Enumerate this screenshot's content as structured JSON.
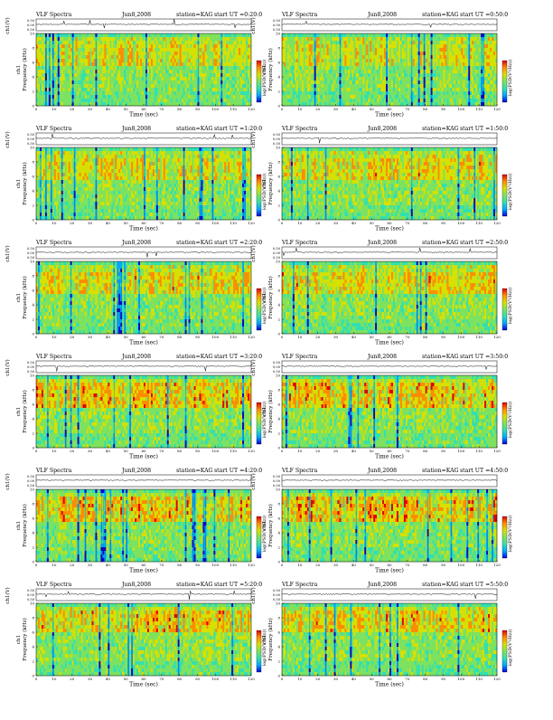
{
  "page": {
    "title": "VLF Spectra — KAG, Jun 8 2008"
  },
  "common": {
    "heading": "VLF Spectra",
    "date": "Jun8,2008",
    "station": "station=KAG",
    "start_prefix": "start UT =",
    "top_ylabel": "ch1(V)",
    "top_yticks": [
      "0.00",
      "0.50"
    ],
    "top_yticks_full": [
      "0.50",
      "0.00",
      "0.50"
    ],
    "ylabel_line1": "ch1",
    "ylabel_line2": "Frequency (kHz)",
    "xlabel": "Time (sec)",
    "colorbar_label": "log(PSD(V²/Hz))",
    "colorscale": [
      "#0000d8",
      "#00a8ff",
      "#33e0b0",
      "#7ee25e",
      "#d8e000",
      "#ff8c00",
      "#e00000"
    ]
  },
  "chart_data": [
    {
      "type": "heatmap",
      "title": "VLF Spectra  Jun8,2008  station=KAG  start UT =0:20:0",
      "start_ut": "0:20:0",
      "xlabel": "Time (sec)",
      "ylabel": "ch1 Frequency (kHz)",
      "x_ticks": [
        0,
        10,
        20,
        30,
        40,
        50,
        60,
        70,
        80,
        90,
        100,
        110,
        120
      ],
      "y_ticks": [
        0,
        2,
        4,
        6,
        8,
        10
      ],
      "xlim": [
        0,
        120
      ],
      "ylim": [
        0,
        10
      ],
      "colorbar": "log(PSD(V²/Hz))",
      "band_kHz": [
        5.5,
        8.5
      ],
      "intensity": 0.45
    },
    {
      "type": "heatmap",
      "title": "VLF Spectra  Jun8,2008  station=KAG  start UT =0:50:0",
      "start_ut": "0:50:0",
      "xlabel": "Time (sec)",
      "ylabel": "ch1 Frequency (kHz)",
      "x_ticks": [
        0,
        10,
        20,
        30,
        40,
        50,
        60,
        70,
        80,
        90,
        100,
        110,
        120
      ],
      "y_ticks": [
        0,
        2,
        4,
        6,
        8,
        10
      ],
      "xlim": [
        0,
        120
      ],
      "ylim": [
        0,
        10
      ],
      "colorbar": "log(PSD(V²/Hz))",
      "band_kHz": [
        5.5,
        8.5
      ],
      "intensity": 0.4
    },
    {
      "type": "heatmap",
      "title": "VLF Spectra  Jun8,2008  station=KAG  start UT =1:20:0",
      "start_ut": "1:20:0",
      "xlabel": "Time (sec)",
      "ylabel": "ch1 Frequency (kHz)",
      "x_ticks": [
        0,
        10,
        20,
        30,
        40,
        50,
        60,
        70,
        80,
        90,
        100,
        110,
        120
      ],
      "y_ticks": [
        0,
        2,
        4,
        6,
        8,
        10
      ],
      "xlim": [
        0,
        120
      ],
      "ylim": [
        0,
        10
      ],
      "colorbar": "log(PSD(V²/Hz))",
      "band_kHz": [
        5.5,
        8.5
      ],
      "intensity": 0.5
    },
    {
      "type": "heatmap",
      "title": "VLF Spectra  Jun8,2008  station=KAG  start UT =1:50:0",
      "start_ut": "1:50:0",
      "xlabel": "Time (sec)",
      "ylabel": "ch1 Frequency (kHz)",
      "x_ticks": [
        0,
        10,
        20,
        30,
        40,
        50,
        60,
        70,
        80,
        90,
        100,
        110,
        120
      ],
      "y_ticks": [
        0,
        2,
        4,
        6,
        8,
        10
      ],
      "xlim": [
        0,
        120
      ],
      "ylim": [
        0,
        10
      ],
      "colorbar": "log(PSD(V²/Hz))",
      "band_kHz": [
        5.5,
        8.5
      ],
      "intensity": 0.55
    },
    {
      "type": "heatmap",
      "title": "VLF Spectra  Jun8,2008  station=KAG  start UT =2:20:0",
      "start_ut": "2:20:0",
      "xlabel": "Time (sec)",
      "ylabel": "ch1 Frequency (kHz)",
      "x_ticks": [
        0,
        10,
        20,
        30,
        40,
        50,
        60,
        70,
        80,
        90,
        100,
        110,
        120
      ],
      "y_ticks": [
        0,
        2,
        4,
        6,
        8,
        10
      ],
      "xlim": [
        0,
        120
      ],
      "ylim": [
        0,
        10
      ],
      "colorbar": "log(PSD(V²/Hz))",
      "band_kHz": [
        5.5,
        8.5
      ],
      "intensity": 0.6
    },
    {
      "type": "heatmap",
      "title": "VLF Spectra  Jun8,2008  station=KAG  start UT =2:50:0",
      "start_ut": "2:50:0",
      "xlabel": "Time (sec)",
      "ylabel": "ch1 Frequency (kHz)",
      "x_ticks": [
        0,
        10,
        20,
        30,
        40,
        50,
        60,
        70,
        80,
        90,
        100,
        110,
        120
      ],
      "y_ticks": [
        0,
        2,
        4,
        6,
        8,
        10
      ],
      "xlim": [
        0,
        120
      ],
      "ylim": [
        0,
        10
      ],
      "colorbar": "log(PSD(V²/Hz))",
      "band_kHz": [
        5.5,
        8.5
      ],
      "intensity": 0.6
    },
    {
      "type": "heatmap",
      "title": "VLF Spectra  Jun8,2008  station=KAG  start UT =3:20:0",
      "start_ut": "3:20:0",
      "xlabel": "Time (sec)",
      "ylabel": "ch1 Frequency (kHz)",
      "x_ticks": [
        0,
        10,
        20,
        30,
        40,
        50,
        60,
        70,
        80,
        90,
        100,
        110,
        120
      ],
      "y_ticks": [
        0,
        2,
        4,
        6,
        8,
        10
      ],
      "xlim": [
        0,
        120
      ],
      "ylim": [
        0,
        10
      ],
      "colorbar": "log(PSD(V²/Hz))",
      "band_kHz": [
        5.5,
        9.0
      ],
      "intensity": 0.7
    },
    {
      "type": "heatmap",
      "title": "VLF Spectra  Jun8,2008  station=KAG  start UT =3:50:0",
      "start_ut": "3:50:0",
      "xlabel": "Time (sec)",
      "ylabel": "ch1 Frequency (kHz)",
      "x_ticks": [
        0,
        10,
        20,
        30,
        40,
        50,
        60,
        70,
        80,
        90,
        100,
        110,
        120
      ],
      "y_ticks": [
        0,
        2,
        4,
        6,
        8,
        10
      ],
      "xlim": [
        0,
        120
      ],
      "ylim": [
        0,
        10
      ],
      "colorbar": "log(PSD(V²/Hz))",
      "band_kHz": [
        5.5,
        9.0
      ],
      "intensity": 0.7
    },
    {
      "type": "heatmap",
      "title": "VLF Spectra  Jun8,2008  station=KAG  start UT =4:20:0",
      "start_ut": "4:20:0",
      "xlabel": "Time (sec)",
      "ylabel": "ch1 Frequency (kHz)",
      "x_ticks": [
        0,
        10,
        20,
        30,
        40,
        50,
        60,
        70,
        80,
        90,
        100,
        110,
        120
      ],
      "y_ticks": [
        0,
        2,
        4,
        6,
        8,
        10
      ],
      "xlim": [
        0,
        120
      ],
      "ylim": [
        0,
        10
      ],
      "colorbar": "log(PSD(V²/Hz))",
      "band_kHz": [
        5.5,
        9.0
      ],
      "intensity": 0.75
    },
    {
      "type": "heatmap",
      "title": "VLF Spectra  Jun8,2008  station=KAG  start UT =4:50:0",
      "start_ut": "4:50:0",
      "xlabel": "Time (sec)",
      "ylabel": "ch1 Frequency (kHz)",
      "x_ticks": [
        0,
        10,
        20,
        30,
        40,
        50,
        60,
        70,
        80,
        90,
        100,
        110,
        120
      ],
      "y_ticks": [
        0,
        2,
        4,
        6,
        8,
        10
      ],
      "xlim": [
        0,
        120
      ],
      "ylim": [
        0,
        10
      ],
      "colorbar": "log(PSD(V²/Hz))",
      "band_kHz": [
        5.5,
        9.0
      ],
      "intensity": 0.75
    },
    {
      "type": "heatmap",
      "title": "VLF Spectra  Jun8,2008  station=KAG  start UT =5:20:0",
      "start_ut": "5:20:0",
      "xlabel": "Time (sec)",
      "ylabel": "ch1 Frequency (kHz)",
      "x_ticks": [
        0,
        10,
        20,
        30,
        40,
        50,
        60,
        70,
        80,
        90,
        100,
        110,
        120
      ],
      "y_ticks": [
        0,
        2,
        4,
        6,
        8,
        10
      ],
      "xlim": [
        0,
        120
      ],
      "ylim": [
        0,
        10
      ],
      "colorbar": "log(PSD(V²/Hz))",
      "band_kHz": [
        6.0,
        9.0
      ],
      "intensity": 0.65
    },
    {
      "type": "heatmap",
      "title": "VLF Spectra  Jun8,2008  station=KAG  start UT =5:50:0",
      "start_ut": "5:50:0",
      "xlabel": "Time (sec)",
      "ylabel": "ch1 Frequency (kHz)",
      "x_ticks": [
        0,
        10,
        20,
        30,
        40,
        50,
        60,
        70,
        80,
        90,
        100,
        110,
        120
      ],
      "y_ticks": [
        0,
        2,
        4,
        6,
        8,
        10
      ],
      "xlim": [
        0,
        120
      ],
      "ylim": [
        0,
        10
      ],
      "colorbar": "log(PSD(V²/Hz))",
      "band_kHz": [
        6.0,
        9.0
      ],
      "intensity": 0.65
    }
  ]
}
